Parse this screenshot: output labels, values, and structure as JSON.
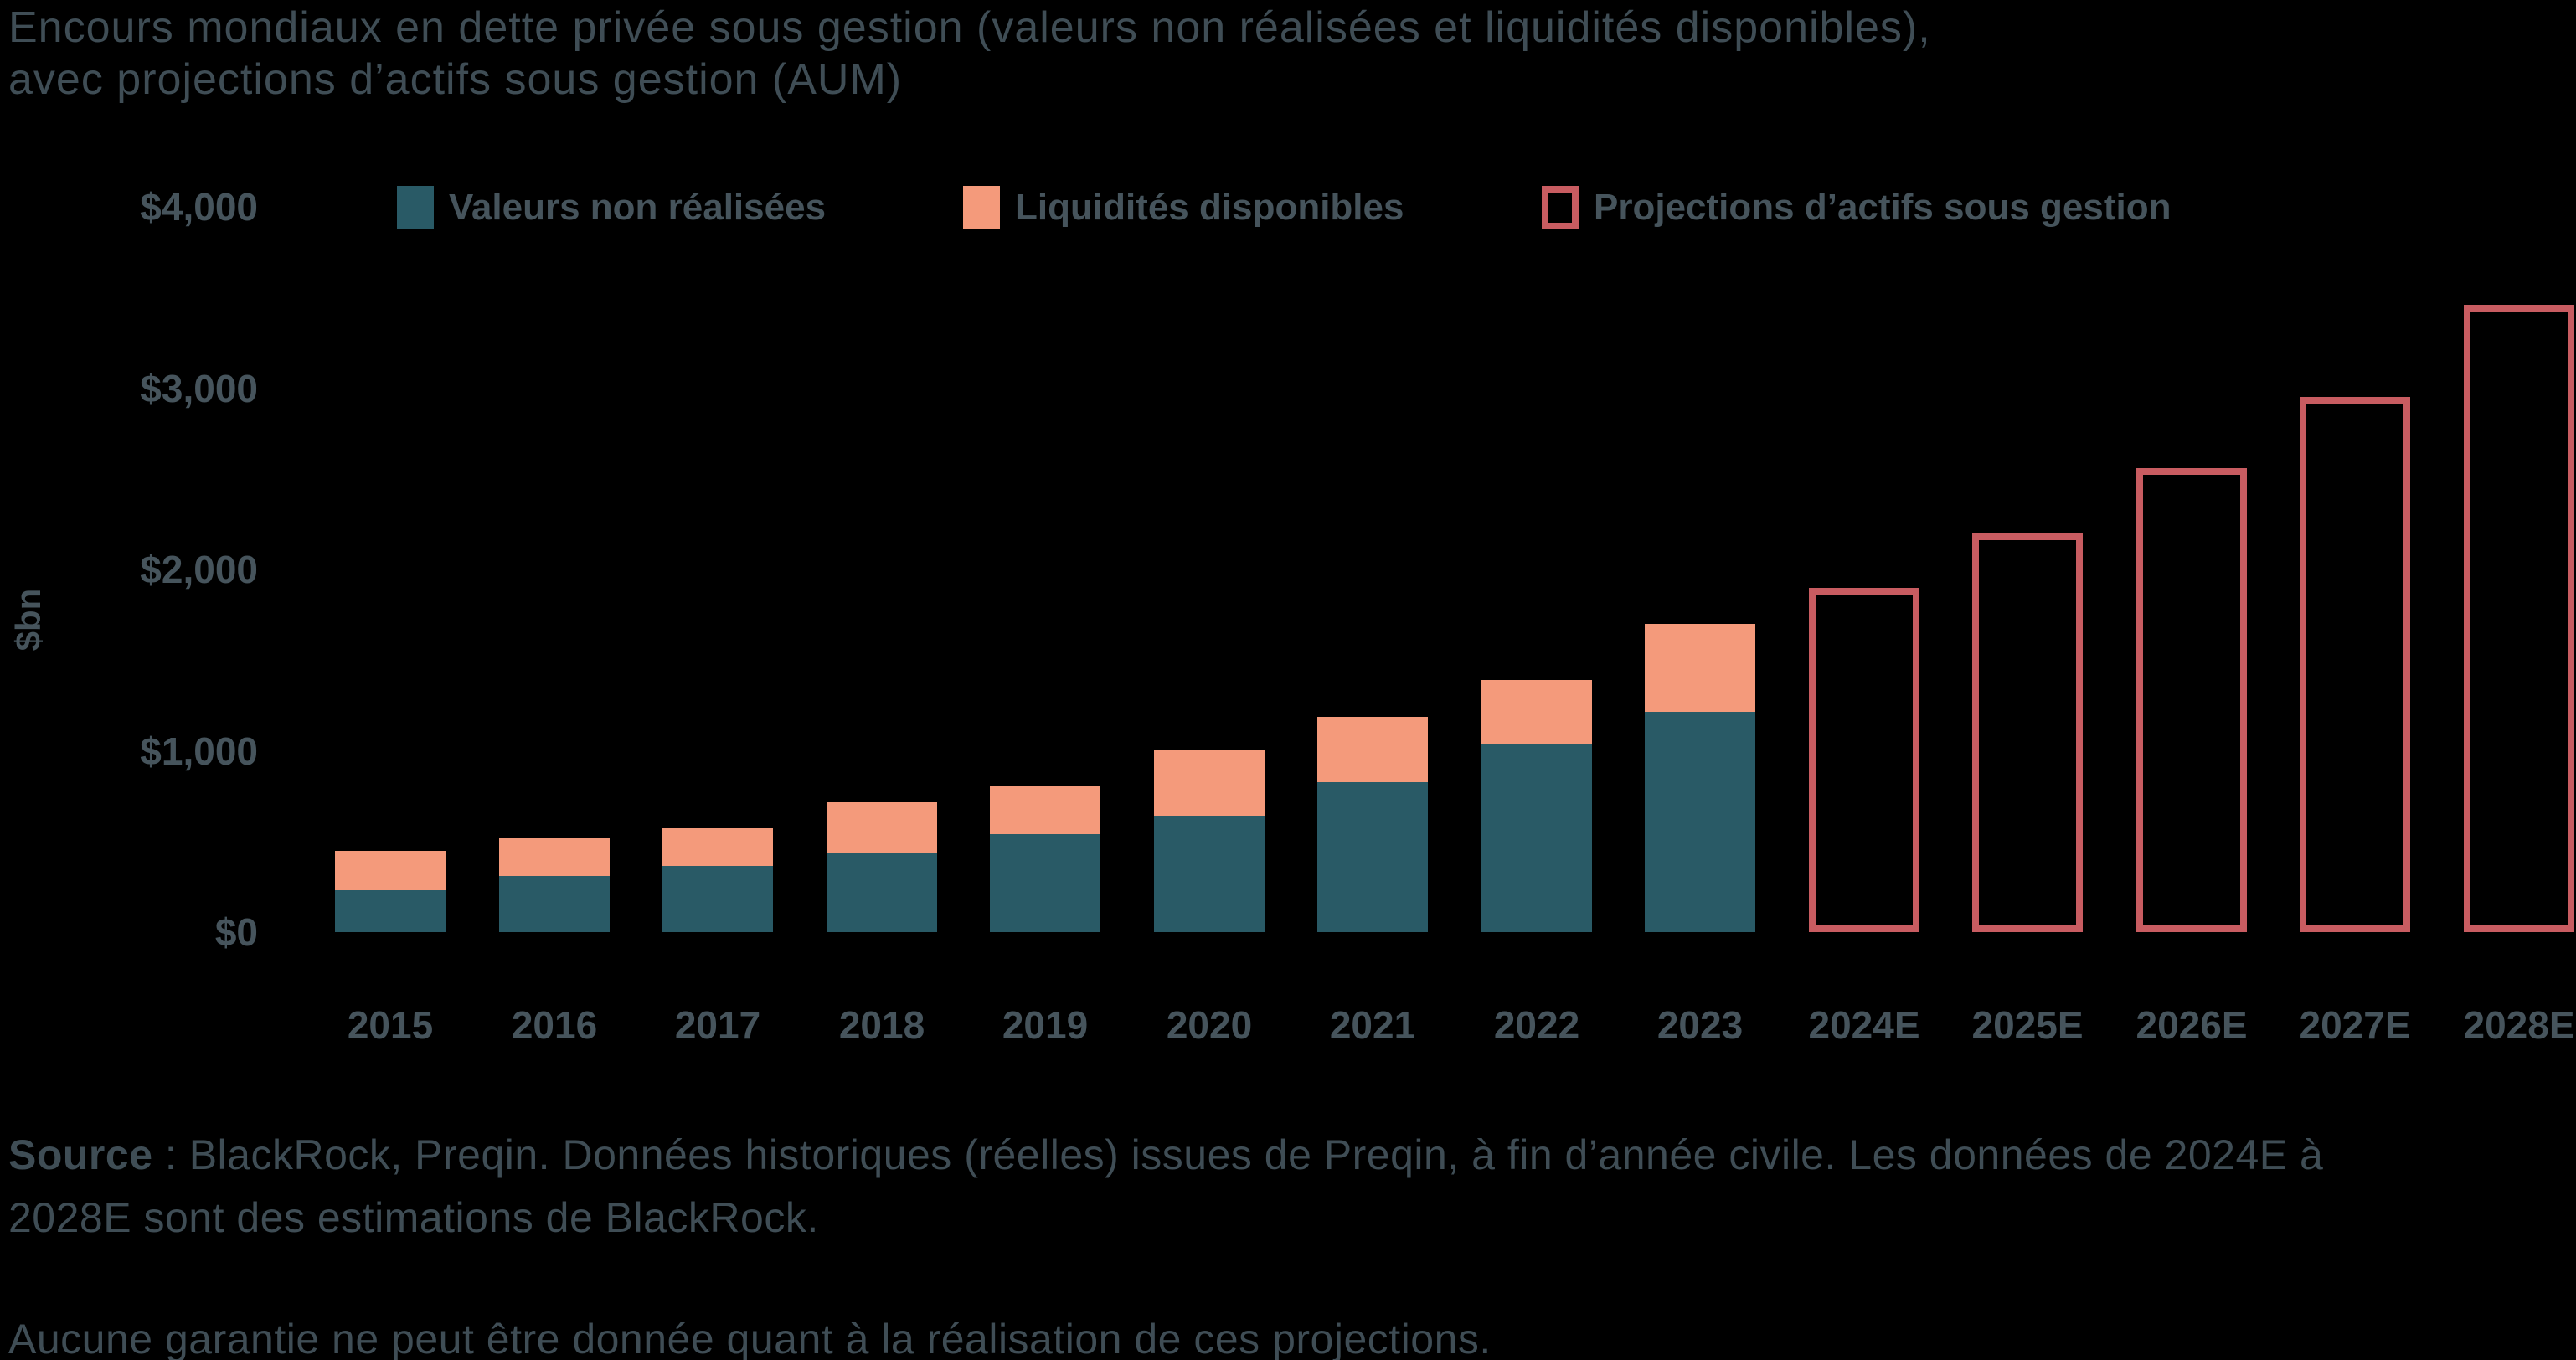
{
  "title": {
    "line1": "Encours mondiaux en dette privée sous gestion (valeurs non réalisées et liquidités disponibles),",
    "line2": "avec projections d’actifs sous gestion (AUM)"
  },
  "legend": {
    "items": [
      {
        "label": "Valeurs non réalisées",
        "swatch": "solid",
        "color": "#295A66"
      },
      {
        "label": "Liquidités disponibles",
        "swatch": "solid",
        "color": "#F49A7B"
      },
      {
        "label": "Projections d’actifs sous gestion",
        "swatch": "outline",
        "color": "#C85C61"
      }
    ]
  },
  "y_axis": {
    "title": "$bn",
    "ticks": [
      {
        "label": "$4,000",
        "value": 4000
      },
      {
        "label": "$3,000",
        "value": 3000
      },
      {
        "label": "$2,000",
        "value": 2000
      },
      {
        "label": "$1,000",
        "value": 1000
      },
      {
        "label": "$0",
        "value": 0
      }
    ]
  },
  "chart_data": {
    "type": "bar",
    "subtype": "stacked-with-outlined-projections",
    "title": "Encours mondiaux en dette privée sous gestion (valeurs non réalisées et liquidités disponibles), avec projections d’actifs sous gestion (AUM)",
    "ylabel": "$bn",
    "ylim": [
      0,
      4000
    ],
    "grid": false,
    "legend_position": "top",
    "categories": [
      "2015",
      "2016",
      "2017",
      "2018",
      "2019",
      "2020",
      "2021",
      "2022",
      "2023",
      "2024E",
      "2025E",
      "2026E",
      "2027E",
      "2028E"
    ],
    "series": [
      {
        "name": "Valeurs non réalisées",
        "style": "solid",
        "color": "#295A66",
        "values": [
          230,
          310,
          365,
          440,
          540,
          640,
          825,
          1035,
          1215,
          null,
          null,
          null,
          null,
          null
        ]
      },
      {
        "name": "Liquidités disponibles",
        "style": "solid",
        "color": "#F49A7B",
        "values": [
          215,
          210,
          210,
          275,
          270,
          360,
          360,
          355,
          485,
          null,
          null,
          null,
          null,
          null
        ]
      },
      {
        "name": "Projections d’actifs sous gestion",
        "style": "outline",
        "color": "#C85C61",
        "values": [
          null,
          null,
          null,
          null,
          null,
          null,
          null,
          null,
          null,
          1900,
          2200,
          2560,
          2950,
          3460
        ]
      }
    ],
    "totals_historical": [
      445,
      520,
      575,
      715,
      810,
      1000,
      1185,
      1390,
      1700
    ]
  },
  "footer": {
    "source_label": "Source",
    "line1_rest": " : BlackRock, Preqin. Données historiques (réelles) issues de Preqin, à fin d’année civile. Les données de 2024E à",
    "line2": "2028E sont des estimations de BlackRock.",
    "note": "Aucune garantie ne peut être donnée quant à la réalisation de ces projections."
  },
  "colors": {
    "background": "#000000",
    "text": "#45525A",
    "unrealized": "#295A66",
    "liquidity": "#F49A7B",
    "projection_outline": "#C85C61"
  }
}
